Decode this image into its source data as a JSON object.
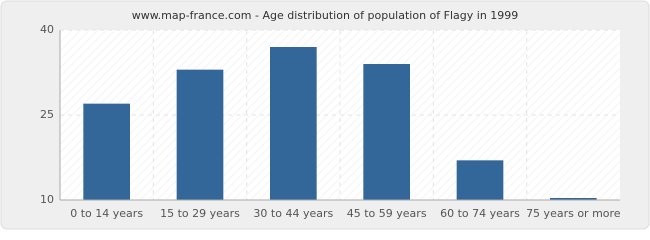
{
  "chart_data": {
    "type": "bar",
    "title": "www.map-france.com - Age distribution of population of Flagy in 1999",
    "categories": [
      "0 to 14 years",
      "15 to 29 years",
      "30 to 44 years",
      "45 to 59 years",
      "60 to 74 years",
      "75 years or more"
    ],
    "values": [
      27,
      33,
      37,
      34,
      17,
      10
    ],
    "color": "#336699",
    "ylim": [
      10,
      40
    ],
    "yticks": [
      10,
      25,
      40
    ],
    "grid": true
  }
}
